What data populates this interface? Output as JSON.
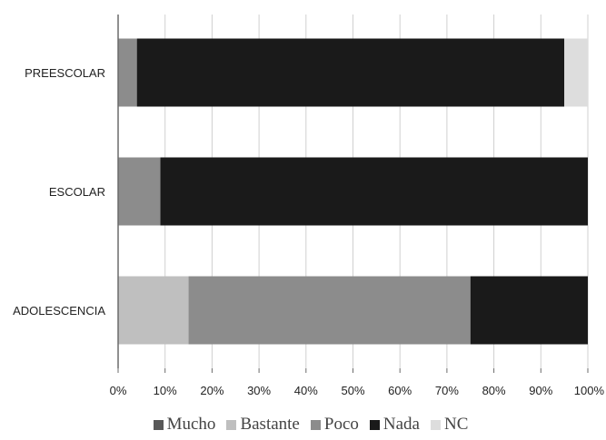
{
  "chart_data": {
    "type": "bar",
    "orientation": "horizontal",
    "stacked": "percent",
    "categories": [
      "PREESCOLAR",
      "ESCOLAR",
      "ADOLESCENCIA"
    ],
    "series": [
      {
        "name": "Mucho",
        "color": "#595959",
        "values": [
          0,
          0,
          0
        ]
      },
      {
        "name": "Bastante",
        "color": "#bfbfbf",
        "values": [
          0,
          0,
          15
        ]
      },
      {
        "name": "Poco",
        "color": "#8c8c8c",
        "values": [
          4,
          9,
          60
        ]
      },
      {
        "name": "Nada",
        "color": "#1a1a1a",
        "values": [
          91,
          91,
          25
        ]
      },
      {
        "name": "NC",
        "color": "#dddddd",
        "values": [
          5,
          0,
          0
        ]
      }
    ],
    "xticks": [
      "0%",
      "10%",
      "20%",
      "30%",
      "40%",
      "50%",
      "60%",
      "70%",
      "80%",
      "90%",
      "100%"
    ],
    "xlim": [
      0,
      100
    ],
    "grid": true,
    "legend_position": "bottom"
  }
}
